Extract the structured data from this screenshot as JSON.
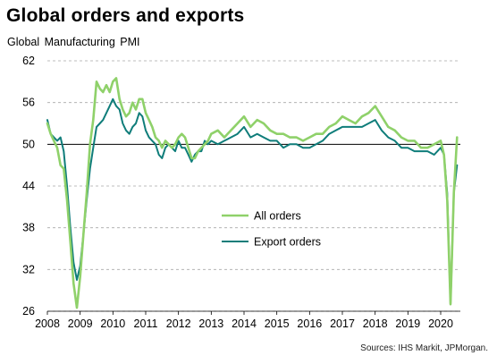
{
  "title": "Global orders and exports",
  "subtitle": "Global  Manufacturing  PMI",
  "source": "Sources: IHS Markit, JPMorgan.",
  "colors": {
    "all_orders": "#8fd16a",
    "export_orders": "#0f7d7a",
    "grid": "#a8a8a8",
    "baseline": "#000000"
  },
  "chart_data": {
    "type": "line",
    "title": "Global orders and exports",
    "ylabel": "Global  Manufacturing  PMI",
    "xlabel": "",
    "ylim": [
      26,
      62
    ],
    "yticks": [
      26,
      32,
      38,
      44,
      50,
      56,
      62
    ],
    "xlim": [
      2008.0,
      2020.6
    ],
    "xticks": [
      "2008",
      "2009",
      "2010",
      "2011",
      "2012",
      "2013",
      "2014",
      "2015",
      "2016",
      "2017",
      "2018",
      "2019",
      "2020"
    ],
    "grid": "horizontal dashed",
    "legend": "center-left",
    "reference_line": 50,
    "series": [
      {
        "name": "All orders",
        "x": [
          2008.0,
          2008.1,
          2008.2,
          2008.3,
          2008.4,
          2008.5,
          2008.6,
          2008.7,
          2008.8,
          2008.9,
          2009.0,
          2009.1,
          2009.2,
          2009.3,
          2009.4,
          2009.5,
          2009.6,
          2009.7,
          2009.8,
          2009.9,
          2010.0,
          2010.1,
          2010.2,
          2010.3,
          2010.4,
          2010.5,
          2010.6,
          2010.7,
          2010.8,
          2010.9,
          2011.0,
          2011.1,
          2011.2,
          2011.3,
          2011.4,
          2011.5,
          2011.6,
          2011.7,
          2011.8,
          2011.9,
          2012.0,
          2012.1,
          2012.2,
          2012.3,
          2012.4,
          2012.5,
          2012.6,
          2012.7,
          2012.8,
          2012.9,
          2013.0,
          2013.2,
          2013.4,
          2013.6,
          2013.8,
          2014.0,
          2014.2,
          2014.4,
          2014.6,
          2014.8,
          2015.0,
          2015.2,
          2015.4,
          2015.6,
          2015.8,
          2016.0,
          2016.2,
          2016.4,
          2016.6,
          2016.8,
          2017.0,
          2017.2,
          2017.4,
          2017.6,
          2017.8,
          2018.0,
          2018.2,
          2018.4,
          2018.6,
          2018.8,
          2019.0,
          2019.2,
          2019.4,
          2019.6,
          2019.8,
          2020.0,
          2020.1,
          2020.2,
          2020.3,
          2020.4,
          2020.5
        ],
        "y": [
          53.0,
          51.5,
          50.5,
          49.5,
          47.0,
          46.5,
          42.0,
          36.0,
          30.0,
          26.5,
          31.0,
          37.0,
          43.0,
          50.0,
          53.5,
          59.0,
          58.0,
          57.5,
          58.5,
          57.5,
          59.0,
          59.5,
          56.5,
          55.0,
          54.0,
          54.5,
          56.0,
          55.0,
          56.5,
          56.5,
          54.5,
          53.5,
          52.5,
          51.0,
          50.5,
          49.5,
          50.5,
          50.0,
          49.5,
          50.0,
          51.0,
          51.5,
          51.0,
          49.5,
          48.0,
          48.0,
          49.0,
          49.5,
          50.0,
          50.5,
          51.5,
          52.0,
          51.0,
          52.0,
          53.0,
          54.0,
          52.5,
          53.5,
          53.0,
          52.0,
          51.5,
          51.5,
          51.0,
          51.0,
          50.5,
          51.0,
          51.5,
          51.5,
          52.5,
          53.0,
          54.0,
          53.5,
          53.0,
          54.0,
          54.5,
          55.5,
          54.0,
          52.5,
          52.0,
          51.0,
          50.5,
          50.5,
          49.5,
          49.5,
          50.0,
          50.5,
          48.5,
          42.0,
          27.0,
          43.0,
          51.0
        ]
      },
      {
        "name": "Export orders",
        "x": [
          2008.0,
          2008.1,
          2008.2,
          2008.3,
          2008.4,
          2008.5,
          2008.6,
          2008.7,
          2008.8,
          2008.9,
          2009.0,
          2009.1,
          2009.2,
          2009.3,
          2009.4,
          2009.5,
          2009.6,
          2009.7,
          2009.8,
          2009.9,
          2010.0,
          2010.1,
          2010.2,
          2010.3,
          2010.4,
          2010.5,
          2010.6,
          2010.7,
          2010.8,
          2010.9,
          2011.0,
          2011.1,
          2011.2,
          2011.3,
          2011.4,
          2011.5,
          2011.6,
          2011.7,
          2011.8,
          2011.9,
          2012.0,
          2012.1,
          2012.2,
          2012.3,
          2012.4,
          2012.5,
          2012.6,
          2012.7,
          2012.8,
          2012.9,
          2013.0,
          2013.2,
          2013.4,
          2013.6,
          2013.8,
          2014.0,
          2014.2,
          2014.4,
          2014.6,
          2014.8,
          2015.0,
          2015.2,
          2015.4,
          2015.6,
          2015.8,
          2016.0,
          2016.2,
          2016.4,
          2016.6,
          2016.8,
          2017.0,
          2017.2,
          2017.4,
          2017.6,
          2017.8,
          2018.0,
          2018.2,
          2018.4,
          2018.6,
          2018.8,
          2019.0,
          2019.2,
          2019.4,
          2019.6,
          2019.8,
          2020.0,
          2020.1,
          2020.2,
          2020.3,
          2020.4,
          2020.5
        ],
        "y": [
          53.5,
          51.5,
          51.0,
          50.5,
          51.0,
          49.0,
          44.0,
          38.0,
          33.0,
          30.5,
          32.5,
          37.0,
          42.0,
          46.5,
          49.5,
          52.5,
          53.0,
          53.5,
          54.5,
          55.5,
          56.5,
          55.5,
          55.0,
          53.0,
          52.0,
          51.5,
          52.5,
          53.0,
          54.5,
          54.0,
          52.0,
          51.0,
          50.5,
          50.0,
          48.5,
          48.0,
          49.5,
          50.0,
          49.5,
          49.0,
          50.5,
          49.5,
          49.5,
          48.5,
          47.5,
          48.5,
          49.0,
          49.0,
          50.5,
          50.0,
          50.5,
          50.0,
          50.5,
          51.0,
          51.5,
          52.5,
          51.0,
          51.5,
          51.0,
          50.5,
          50.5,
          49.5,
          50.0,
          50.0,
          49.5,
          49.5,
          50.0,
          50.5,
          51.5,
          52.0,
          52.5,
          52.5,
          52.5,
          52.5,
          53.0,
          53.5,
          52.0,
          51.0,
          50.5,
          49.5,
          49.5,
          49.0,
          49.0,
          49.0,
          48.5,
          49.5,
          48.5,
          43.0,
          27.0,
          43.0,
          47.0
        ]
      }
    ]
  }
}
